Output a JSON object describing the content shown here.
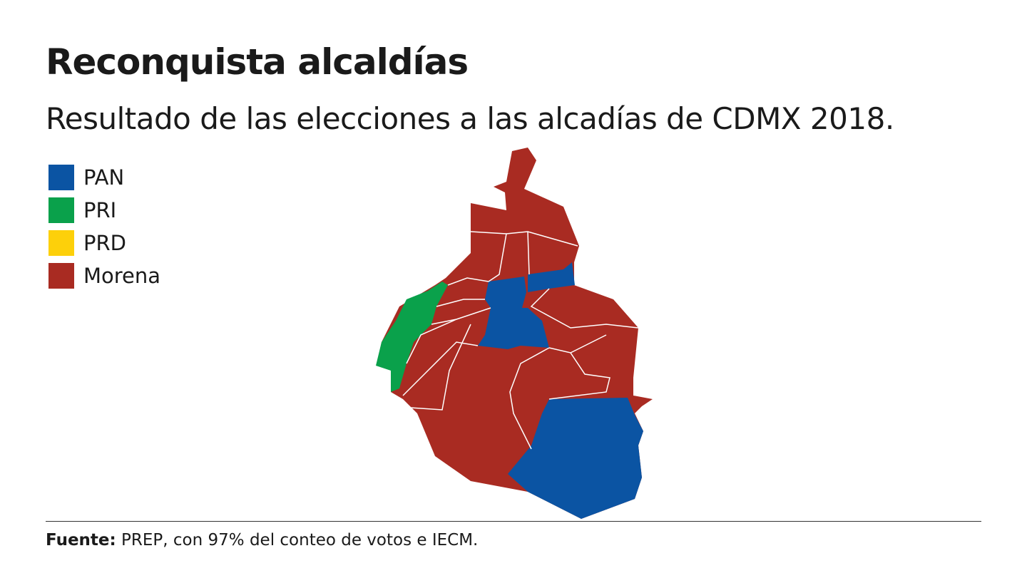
{
  "header": {
    "title": "Reconquista alcaldías",
    "subtitle": "Resultado de las elecciones a las alcadías de CDMX 2018."
  },
  "legend": [
    {
      "name": "PAN",
      "color": "#0b54a3"
    },
    {
      "name": "PRI",
      "color": "#0aa14b"
    },
    {
      "name": "PRD",
      "color": "#fdd00a"
    },
    {
      "name": "Morena",
      "color": "#a92b22"
    }
  ],
  "source": {
    "label": "Fuente:",
    "text": "PREP, con 97% del conteo de votos e IECM."
  }
}
